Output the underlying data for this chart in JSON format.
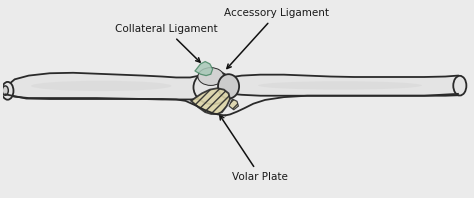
{
  "bg_color": "#ebebeb",
  "bone_fill": "#e4e4e4",
  "bone_fill2": "#d0d0d0",
  "bone_ec": "#2a2a2a",
  "ligament_fill": "#a8c8b8",
  "volar_fill": "#ddd5a8",
  "arrow_color": "#111111",
  "text_color": "#1a1a1a",
  "label_accessory": "Accessory Ligament",
  "label_collateral": "Collateral Ligament",
  "label_volar": "Volar Plate",
  "figsize": [
    4.74,
    1.98
  ],
  "dpi": 100,
  "lw": 1.3
}
